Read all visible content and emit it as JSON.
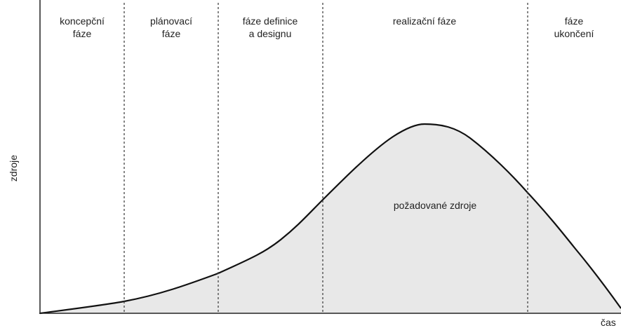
{
  "diagram": {
    "phases": [
      {
        "lines": [
          "koncepční",
          "fáze"
        ]
      },
      {
        "lines": [
          "plánovací",
          "fáze"
        ]
      },
      {
        "lines": [
          "fáze definice",
          "a designu"
        ]
      },
      {
        "lines": [
          "realizační fáze"
        ]
      },
      {
        "lines": [
          "fáze",
          "ukončení"
        ]
      }
    ],
    "y_axis_label": "zdroje",
    "x_axis_label": "čas",
    "area_label": "požadované zdroje"
  }
}
